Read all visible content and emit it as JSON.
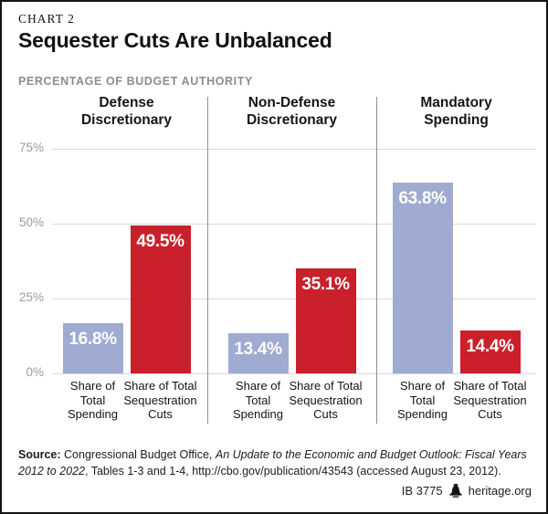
{
  "header": {
    "kicker": "CHART 2",
    "title": "Sequester Cuts Are Unbalanced",
    "subtitle": "PERCENTAGE OF BUDGET AUTHORITY"
  },
  "chart_data": {
    "type": "bar",
    "title": "Sequester Cuts Are Unbalanced",
    "subtitle": "Percentage of Budget Authority",
    "unit": "%",
    "categories": [
      "Defense Discretionary",
      "Non-Defense Discretionary",
      "Mandatory Spending"
    ],
    "category_lines": [
      [
        "Defense",
        "Discretionary"
      ],
      [
        "Non-Defense",
        "Discretionary"
      ],
      [
        "Mandatory",
        "Spending"
      ]
    ],
    "series": [
      {
        "name": "Share of Total Spending",
        "values": [
          16.8,
          13.4,
          63.8
        ],
        "color": "#9fabd1"
      },
      {
        "name": "Share of Total Sequestration Cuts",
        "values": [
          49.5,
          35.1,
          14.4
        ],
        "color": "#c9202b"
      }
    ],
    "bar_label_lines": [
      [
        "Share of",
        "Total",
        "Spending"
      ],
      [
        "Share of Total",
        "Sequestration",
        "Cuts"
      ]
    ],
    "value_labels": [
      [
        "16.8%",
        "49.5%"
      ],
      [
        "13.4%",
        "35.1%"
      ],
      [
        "63.8%",
        "14.4%"
      ]
    ],
    "ylim": [
      0,
      80
    ],
    "yticks": [
      0,
      25,
      50,
      75
    ],
    "ytick_labels": [
      "0%",
      "25%",
      "50%",
      "75%"
    ],
    "grid": true,
    "legend_position": "none",
    "grid_color": "#dadada",
    "divider_color": "#8f8f8f"
  },
  "footer": {
    "source_label": "Source:",
    "source_pre": " Congressional Budget Office, ",
    "source_italic": "An Update to the Economic and Budget Outlook: Fiscal Years 2012 to 2022",
    "source_post": ", Tables 1-3 and 1-4, http://cbo.gov/publication/43543 (accessed August 23, 2012).",
    "doc_id": "IB 3775",
    "site": "heritage.org"
  }
}
